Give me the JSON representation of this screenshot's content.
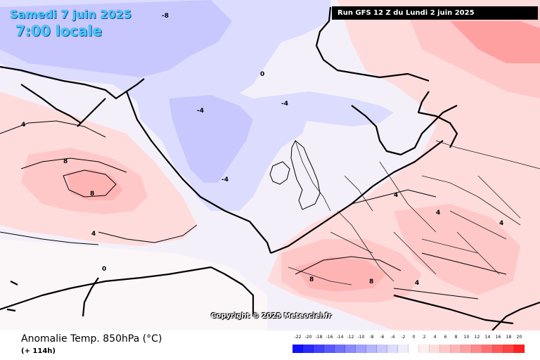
{
  "header": {
    "date_label": "Samedi 7 juin 2025",
    "time_label": "7:00 locale",
    "run_label": "Run GFS 12 Z du Lundi 2 juin 2025"
  },
  "watermark": "Copyright © 2025 Meteociel.fr",
  "footer": {
    "parameter_title": "Anomalie Temp. 850hPa (°C)",
    "forecast_hour": "(+ 114h)"
  },
  "legend": {
    "labels": [
      "-22",
      "-20",
      "-18",
      "-16",
      "-14",
      "-12",
      "-10",
      "-8",
      "-6",
      "-4",
      "-2",
      "0",
      "2",
      "4",
      "6",
      "8",
      "10",
      "12",
      "14",
      "16",
      "18",
      "20"
    ],
    "colors": [
      "#1010ff",
      "#2828ff",
      "#4040ff",
      "#5858ff",
      "#7070ff",
      "#8888ff",
      "#a0a0ff",
      "#b4b4ff",
      "#c8c8ff",
      "#dcdcff",
      "#eeeeff",
      "#ffffff",
      "#ffeeee",
      "#ffdcdc",
      "#ffc8c8",
      "#ffb4b4",
      "#ffa0a0",
      "#ff8888",
      "#ff7070",
      "#ff5858",
      "#ff4040",
      "#ff2020"
    ]
  },
  "isolines": {
    "minus8": "-8",
    "minus4": "-4",
    "zero": "0",
    "plus4": "4",
    "plus8": "8"
  }
}
